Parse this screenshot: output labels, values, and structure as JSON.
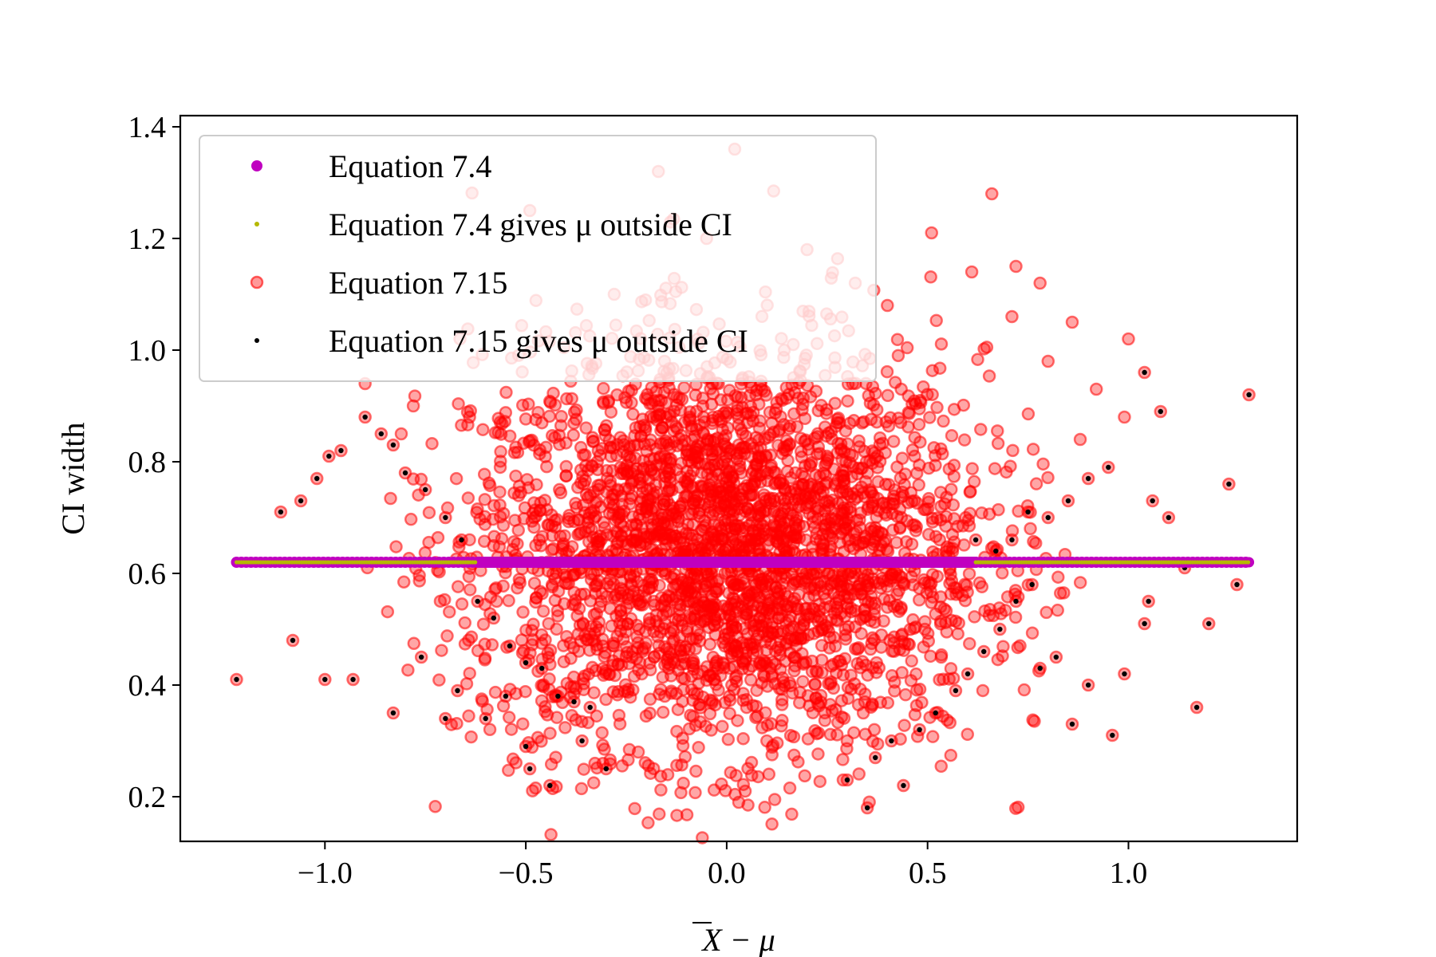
{
  "chart_data": {
    "type": "scatter",
    "title": "",
    "xlabel": "X̄ − μ",
    "ylabel": "CI width",
    "xlim": [
      -1.36,
      1.42
    ],
    "ylim": [
      0.12,
      1.42
    ],
    "xticks": [
      -1.0,
      -0.5,
      0.0,
      0.5,
      1.0
    ],
    "xtick_labels": [
      "−1.0",
      "−0.5",
      "0.0",
      "0.5",
      "1.0"
    ],
    "yticks": [
      0.2,
      0.4,
      0.6,
      0.8,
      1.0,
      1.2,
      1.4
    ],
    "ytick_labels": [
      "0.2",
      "0.4",
      "0.6",
      "0.8",
      "1.0",
      "1.2",
      "1.4"
    ],
    "grid": false,
    "legend_position": "top-left",
    "colors": {
      "eq74": "#c000c0",
      "eq74_outside": "#b5b800",
      "eq715": "#ff0000",
      "eq715_outside": "#000000"
    },
    "notes": {
      "eq74_constant_width": 0.62,
      "critical_threshold": 0.62
    },
    "series": [
      {
        "name": "Equation 7.4",
        "marker": "circle",
        "color": "#c000c0",
        "y_constant": 0.62,
        "x": [
          -1.22,
          -1.17,
          -1.15,
          -1.12,
          -1.1,
          -1.06,
          -1.04,
          -1.02,
          -0.99,
          -0.97,
          -0.95,
          -0.6,
          0.6,
          0.95,
          0.97,
          1.0,
          1.02,
          1.04,
          1.06,
          1.08,
          1.1,
          1.12,
          1.14,
          1.17,
          1.27,
          1.3
        ]
      },
      {
        "name": "Equation 7.4 gives μ outside CI",
        "marker": "dot",
        "color": "#b5b800",
        "y_constant": 0.62,
        "x_ranges": [
          [
            -1.22,
            -0.62
          ],
          [
            0.62,
            1.3
          ]
        ]
      },
      {
        "name": "Equation 7.15",
        "marker": "circle",
        "color": "#ff0000",
        "points": [
          [
            0.02,
            1.36
          ],
          [
            -0.17,
            1.32
          ],
          [
            -0.49,
            1.25
          ],
          [
            0.66,
            1.28
          ],
          [
            0.51,
            1.21
          ],
          [
            -0.05,
            1.2
          ],
          [
            0.2,
            1.18
          ],
          [
            0.72,
            1.15
          ],
          [
            0.32,
            1.12
          ],
          [
            0.61,
            1.14
          ],
          [
            -0.28,
            1.1
          ],
          [
            0.78,
            1.12
          ],
          [
            0.86,
            1.05
          ],
          [
            0.71,
            1.06
          ],
          [
            0.4,
            1.08
          ],
          [
            1.0,
            1.02
          ],
          [
            0.8,
            0.98
          ],
          [
            0.92,
            0.93
          ],
          [
            -0.9,
            0.94
          ],
          [
            -0.81,
            0.85
          ],
          [
            0.99,
            0.88
          ],
          [
            -0.78,
            0.9
          ],
          [
            0.88,
            0.84
          ],
          [
            -0.64,
            0.88
          ],
          [
            0.03,
            0.19
          ],
          [
            0.29,
            0.23
          ],
          [
            -0.22,
            0.28
          ],
          [
            0.1,
            0.3
          ],
          [
            0.3,
            0.3
          ],
          [
            0.34,
            0.35
          ]
        ],
        "cloud": {
          "center_x": 0.0,
          "center_y": 0.64,
          "sd_x": 0.32,
          "sd_y": 0.18
        }
      },
      {
        "name": "Equation 7.15 gives μ outside CI",
        "marker": "dot",
        "color": "#000000",
        "points": [
          [
            -1.22,
            0.41
          ],
          [
            -1.08,
            0.48
          ],
          [
            -1.0,
            0.41
          ],
          [
            -0.93,
            0.41
          ],
          [
            -0.83,
            0.35
          ],
          [
            -0.76,
            0.45
          ],
          [
            -0.7,
            0.34
          ],
          [
            -0.67,
            0.39
          ],
          [
            -0.6,
            0.34
          ],
          [
            -0.55,
            0.38
          ],
          [
            -0.5,
            0.29
          ],
          [
            -0.49,
            0.25
          ],
          [
            -0.44,
            0.22
          ],
          [
            -0.36,
            0.3
          ],
          [
            -0.3,
            0.25
          ],
          [
            -1.11,
            0.71
          ],
          [
            -1.06,
            0.73
          ],
          [
            -1.02,
            0.77
          ],
          [
            -0.99,
            0.81
          ],
          [
            -0.96,
            0.82
          ],
          [
            -0.9,
            0.88
          ],
          [
            -0.86,
            0.85
          ],
          [
            -0.83,
            0.83
          ],
          [
            -0.8,
            0.78
          ],
          [
            -0.75,
            0.75
          ],
          [
            -0.7,
            0.7
          ],
          [
            -0.66,
            0.66
          ],
          [
            -0.62,
            0.55
          ],
          [
            -0.58,
            0.52
          ],
          [
            -0.54,
            0.47
          ],
          [
            -0.5,
            0.44
          ],
          [
            -0.46,
            0.43
          ],
          [
            -0.42,
            0.38
          ],
          [
            -0.38,
            0.37
          ],
          [
            -0.34,
            0.36
          ],
          [
            0.3,
            0.23
          ],
          [
            0.35,
            0.18
          ],
          [
            0.37,
            0.27
          ],
          [
            0.41,
            0.3
          ],
          [
            0.44,
            0.22
          ],
          [
            0.48,
            0.32
          ],
          [
            0.52,
            0.35
          ],
          [
            0.57,
            0.39
          ],
          [
            0.6,
            0.42
          ],
          [
            0.64,
            0.46
          ],
          [
            0.68,
            0.5
          ],
          [
            0.72,
            0.55
          ],
          [
            0.76,
            0.58
          ],
          [
            0.8,
            0.7
          ],
          [
            0.85,
            0.73
          ],
          [
            0.9,
            0.77
          ],
          [
            0.95,
            0.79
          ],
          [
            0.62,
            0.66
          ],
          [
            0.67,
            0.64
          ],
          [
            0.71,
            0.66
          ],
          [
            0.75,
            0.71
          ],
          [
            0.78,
            0.43
          ],
          [
            0.82,
            0.45
          ],
          [
            0.86,
            0.33
          ],
          [
            0.9,
            0.4
          ],
          [
            0.96,
            0.31
          ],
          [
            0.99,
            0.42
          ],
          [
            1.04,
            0.51
          ],
          [
            1.05,
            0.55
          ],
          [
            1.06,
            0.73
          ],
          [
            1.08,
            0.89
          ],
          [
            1.1,
            0.7
          ],
          [
            1.14,
            0.61
          ],
          [
            1.17,
            0.36
          ],
          [
            1.2,
            0.51
          ],
          [
            1.25,
            0.76
          ],
          [
            1.27,
            0.58
          ],
          [
            1.3,
            0.92
          ],
          [
            1.04,
            0.96
          ]
        ]
      }
    ]
  },
  "legend": {
    "items": [
      {
        "label": "Equation 7.4"
      },
      {
        "label": "Equation 7.4 gives μ outside CI"
      },
      {
        "label": "Equation 7.15"
      },
      {
        "label": "Equation 7.15 gives μ outside CI"
      }
    ]
  },
  "axes": {
    "xlabel_base": "X",
    "xlabel_rest": " − μ",
    "ylabel": "CI width"
  }
}
